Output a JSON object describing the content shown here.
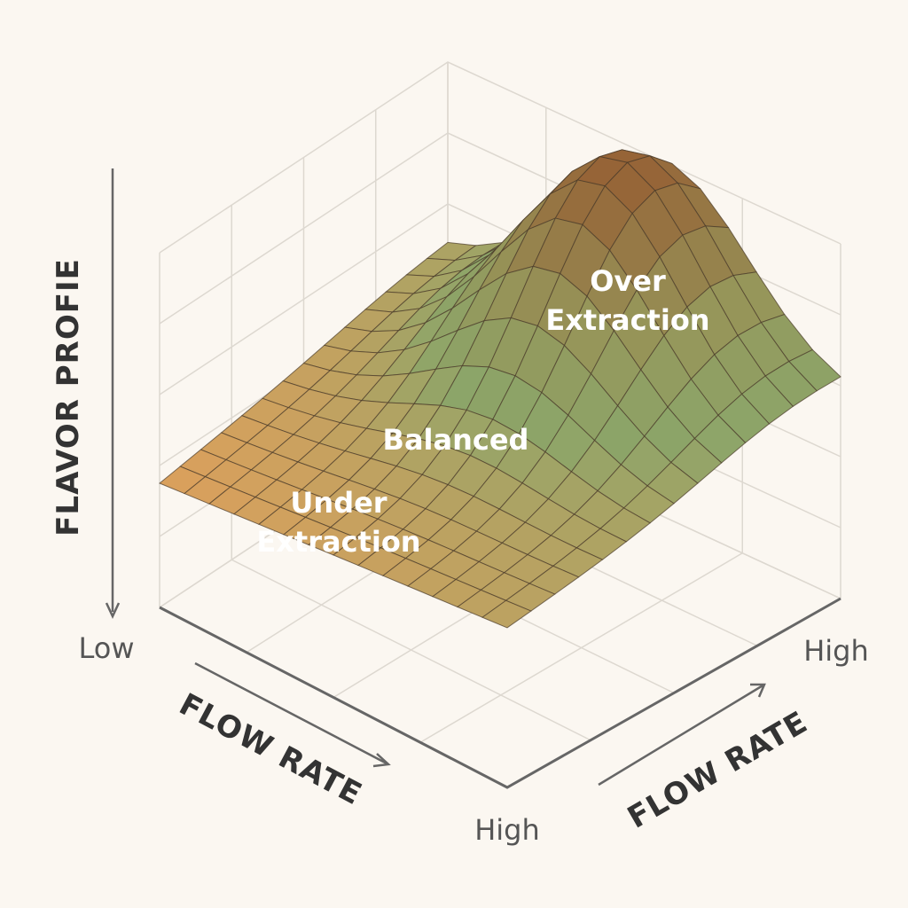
{
  "axes": {
    "vertical": {
      "label": "FLAVOR PROFIE",
      "low": "Low"
    },
    "left": {
      "label": "FLOW RATE",
      "high": "High"
    },
    "right": {
      "label": "FLOW RATE",
      "high": "High"
    }
  },
  "regions": {
    "under": [
      "Under",
      "Extraction"
    ],
    "balanced": "Balanced",
    "over": [
      "Over",
      "Extraction"
    ]
  }
}
